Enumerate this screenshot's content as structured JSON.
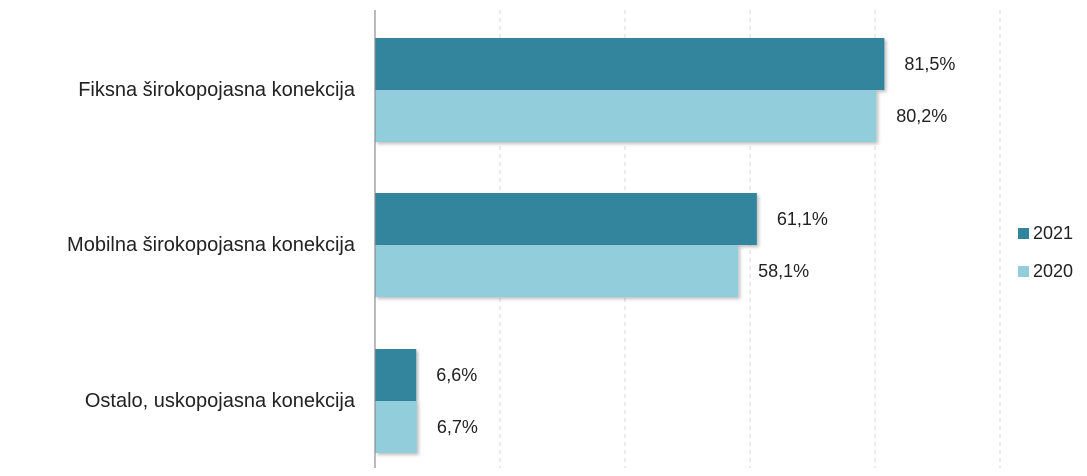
{
  "chart_data": {
    "type": "bar",
    "orientation": "horizontal",
    "categories": [
      "Fiksna širokopojasna konekcija",
      "Mobilna širokopojasna konekcija",
      "Ostalo, uskopojasna konekcija"
    ],
    "series": [
      {
        "name": "2021",
        "color": "#31859c",
        "values": [
          81.5,
          61.1,
          6.6
        ],
        "labels": [
          "81,5%",
          "61,1%",
          "6,6%"
        ]
      },
      {
        "name": "2020",
        "color": "#92cddc",
        "values": [
          80.2,
          58.1,
          6.7
        ],
        "labels": [
          "80,2%",
          "58,1%",
          "6,7%"
        ]
      }
    ],
    "xlim": [
      0,
      100
    ],
    "grid": "vertical-dashed",
    "legend_position": "right",
    "title": "",
    "xlabel": "",
    "ylabel": ""
  }
}
